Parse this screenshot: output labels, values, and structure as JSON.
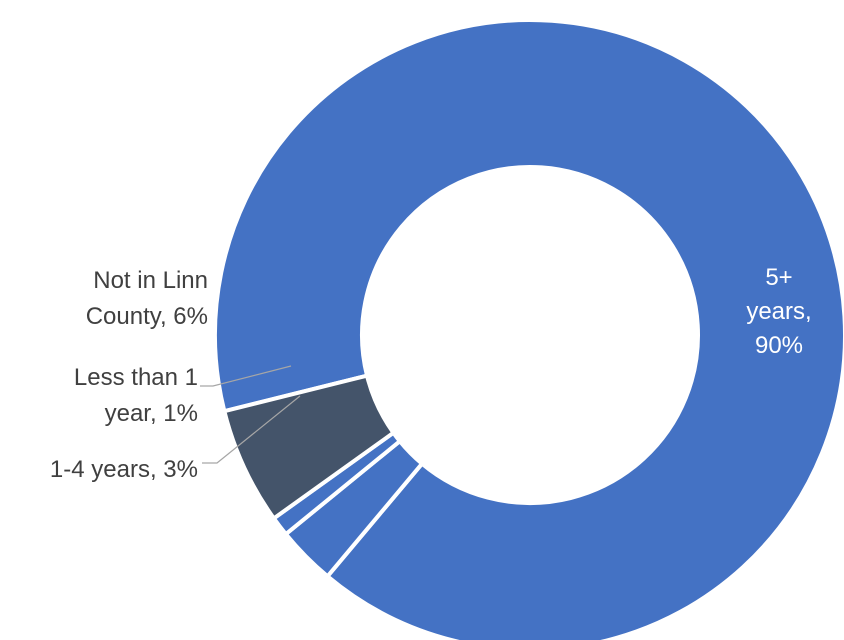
{
  "chart_data": {
    "type": "pie",
    "style": "donut",
    "categories": [
      "5+ years",
      "1-4 years",
      "Less than 1 year",
      "Not in Linn County"
    ],
    "values": [
      90,
      3,
      1,
      6
    ],
    "unit": "%",
    "colors": [
      "#4472c4",
      "#4472c4",
      "#4472c4",
      "#44546a"
    ],
    "data_labels": [
      {
        "category": "5+ years",
        "lines": [
          "5+",
          "years,",
          "90%"
        ],
        "color": "#ffffff"
      },
      {
        "category": "1-4 years",
        "lines": [
          "1-4 years, 3%"
        ],
        "color": "#404040"
      },
      {
        "category": "Less than 1 year",
        "lines": [
          "Less than 1",
          "year, 1%"
        ],
        "color": "#404040"
      },
      {
        "category": "Not in Linn County",
        "lines": [
          "Not in Linn",
          "County, 6%"
        ],
        "color": "#404040"
      }
    ],
    "legend": "none"
  }
}
